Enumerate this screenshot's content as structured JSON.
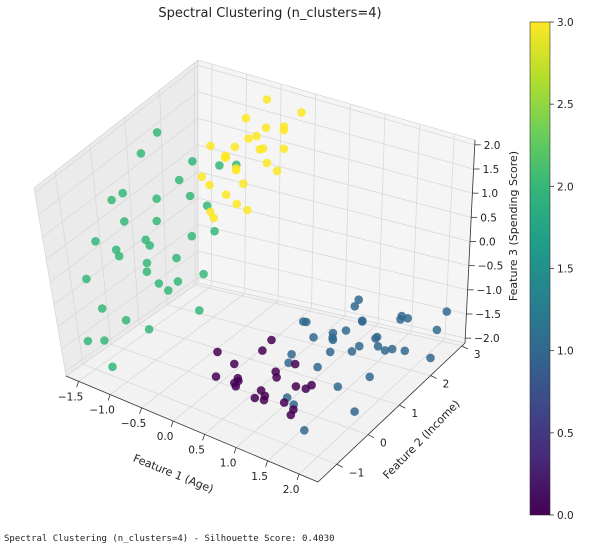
{
  "caption": "Spectral Clustering (n_clusters=4) - Silhouette Score: 0.4030",
  "colors": {
    "cluster_0": "#440154",
    "cluster_1": "#31688e",
    "cluster_2": "#35b779",
    "cluster_3": "#fde725",
    "pane": "#f2f2f2",
    "grid": "#dcdcdc"
  },
  "chart_data": {
    "type": "scatter",
    "projection": "3d",
    "title": "Spectral Clustering (n_clusters=4)",
    "xlabel": "Feature 1 (Age)",
    "ylabel": "Feature 2 (Income)",
    "zlabel": "Feature 3 (Spending Score)",
    "xticks": [
      "−1.5",
      "−1.0",
      "−0.5",
      "0.0",
      "0.5",
      "1.0",
      "1.5",
      "2.0"
    ],
    "yticks": [
      "−1",
      "0",
      "1",
      "2",
      "3"
    ],
    "zticks": [
      "−2.0",
      "−1.5",
      "−1.0",
      "−0.5",
      "0.0",
      "0.5",
      "1.0",
      "1.5",
      "2.0"
    ],
    "xlim": [
      -1.7,
      2.3
    ],
    "ylim": [
      -1.6,
      3.1
    ],
    "zlim": [
      -2.1,
      2.1
    ],
    "grid": true,
    "colorbar": {
      "colormap": "viridis",
      "range": [
        0,
        3
      ],
      "ticks": [
        "0.0",
        "0.5",
        "1.0",
        "1.5",
        "2.0",
        "2.5",
        "3.0"
      ]
    },
    "series": [
      {
        "name": "0",
        "points": [
          [
            0.6,
            -0.6,
            -1.5
          ],
          [
            0.9,
            -0.5,
            -1.6
          ],
          [
            1.1,
            -0.4,
            -1.2
          ],
          [
            1.3,
            -0.2,
            -1.5
          ],
          [
            0.7,
            -0.8,
            -1.3
          ],
          [
            0.5,
            -0.5,
            -1.7
          ],
          [
            1.0,
            -0.9,
            -1.5
          ],
          [
            1.4,
            -0.6,
            -1.8
          ],
          [
            0.8,
            -0.2,
            -1.9
          ],
          [
            1.2,
            -1.0,
            -1.4
          ],
          [
            0.4,
            -0.3,
            -1.4
          ],
          [
            1.5,
            -0.7,
            -1.6
          ],
          [
            0.3,
            -0.7,
            -1.5
          ],
          [
            0.9,
            0.0,
            -1.6
          ],
          [
            1.1,
            -0.2,
            -1.9
          ],
          [
            0.6,
            0.2,
            -1.3
          ],
          [
            0.2,
            -0.4,
            -1.2
          ],
          [
            1.6,
            -0.3,
            -1.3
          ],
          [
            0.8,
            -1.1,
            -1.2
          ],
          [
            1.3,
            0.1,
            -1.7
          ],
          [
            0.7,
            0.3,
            -1.1
          ],
          [
            1.0,
            0.4,
            -1.5
          ]
        ]
      },
      {
        "name": "1",
        "points": [
          [
            1.2,
            0.4,
            -0.6
          ],
          [
            1.5,
            0.6,
            -0.8
          ],
          [
            1.8,
            0.9,
            -0.6
          ],
          [
            1.4,
            1.2,
            -1.1
          ],
          [
            1.7,
            1.5,
            -1.3
          ],
          [
            2.0,
            1.8,
            -1.6
          ],
          [
            1.3,
            0.9,
            -1.4
          ],
          [
            1.6,
            1.3,
            -0.9
          ],
          [
            1.9,
            0.6,
            -0.9
          ],
          [
            2.1,
            1.2,
            -1.2
          ],
          [
            1.1,
            1.4,
            -1.5
          ],
          [
            1.5,
            2.0,
            -1.8
          ],
          [
            1.8,
            2.3,
            -1.3
          ],
          [
            2.1,
            2.6,
            -1.6
          ],
          [
            1.2,
            1.8,
            -1.9
          ],
          [
            1.7,
            0.3,
            -1.6
          ],
          [
            1.3,
            -0.3,
            -1.8
          ],
          [
            1.0,
            0.1,
            -2.0
          ],
          [
            1.6,
            -0.6,
            -2.0
          ],
          [
            2.0,
            0.2,
            -1.9
          ],
          [
            0.7,
            0.8,
            -1.8
          ],
          [
            1.4,
            1.6,
            -0.7
          ],
          [
            1.9,
            1.9,
            -1.0
          ],
          [
            1.1,
            2.1,
            -1.2
          ],
          [
            1.6,
            2.5,
            -1.5
          ],
          [
            2.1,
            2.9,
            -1.4
          ],
          [
            0.8,
            1.1,
            -1.1
          ],
          [
            1.2,
            0.6,
            -1.0
          ],
          [
            1.8,
            1.1,
            -1.8
          ],
          [
            2.2,
            2.2,
            -1.9
          ],
          [
            1.5,
            0.1,
            -1.2
          ],
          [
            1.0,
            1.6,
            -1.6
          ],
          [
            1.7,
            1.8,
            -1.7
          ],
          [
            0.9,
            0.5,
            -1.4
          ],
          [
            1.3,
            2.4,
            -1.9
          ]
        ]
      },
      {
        "name": "2",
        "points": [
          [
            -1.5,
            -0.5,
            0.4
          ],
          [
            -1.3,
            -0.3,
            0.2
          ],
          [
            -1.1,
            -0.6,
            0.3
          ],
          [
            -1.4,
            0.2,
            0.5
          ],
          [
            -1.2,
            0.4,
            0.1
          ],
          [
            -1.0,
            0.0,
            -0.1
          ],
          [
            -0.8,
            -0.4,
            0.0
          ],
          [
            -1.6,
            0.6,
            0.8
          ],
          [
            -0.9,
            0.7,
            -0.3
          ],
          [
            -0.7,
            0.3,
            -0.5
          ],
          [
            -1.3,
            1.0,
            0.6
          ],
          [
            -1.5,
            -0.9,
            -0.2
          ],
          [
            -1.1,
            1.3,
            0.9
          ],
          [
            -0.6,
            0.9,
            -0.6
          ],
          [
            -1.4,
            -0.1,
            1.1
          ],
          [
            -0.8,
            1.5,
            0.4
          ],
          [
            -1.2,
            -1.1,
            -0.6
          ],
          [
            -0.5,
            1.1,
            0.2
          ],
          [
            -1.6,
            1.2,
            1.3
          ],
          [
            -1.0,
            -0.8,
            -0.9
          ],
          [
            -0.7,
            -0.7,
            -1.0
          ],
          [
            -1.3,
            0.7,
            -0.2
          ],
          [
            -0.9,
            0.2,
            0.7
          ],
          [
            -1.5,
            1.5,
            1.6
          ],
          [
            -0.6,
            -0.2,
            -0.4
          ],
          [
            -1.1,
            0.5,
            -0.8
          ],
          [
            -0.8,
            1.9,
            1.0
          ],
          [
            -1.4,
            -1.3,
            -1.3
          ],
          [
            -0.5,
            0.5,
            -1.1
          ],
          [
            -1.2,
            1.8,
            0.3
          ],
          [
            -1.0,
            -1.4,
            -1.6
          ],
          [
            -0.7,
            2.2,
            0.9
          ],
          [
            -1.6,
            -0.4,
            -1.8
          ],
          [
            -0.9,
            1.2,
            -0.1
          ],
          [
            -1.3,
            2.1,
            0.8
          ]
        ]
      },
      {
        "name": "3",
        "points": [
          [
            -0.6,
            1.0,
            1.3
          ],
          [
            -0.4,
            1.3,
            1.6
          ],
          [
            -0.2,
            1.6,
            1.9
          ],
          [
            -0.5,
            1.8,
            1.1
          ],
          [
            -0.3,
            2.1,
            1.4
          ],
          [
            -0.1,
            2.4,
            1.7
          ],
          [
            -0.7,
            1.4,
            0.9
          ],
          [
            -0.5,
            2.0,
            0.7
          ],
          [
            -0.3,
            1.1,
            1.0
          ],
          [
            -0.2,
            2.6,
            1.2
          ],
          [
            -0.6,
            2.3,
            1.8
          ],
          [
            -0.4,
            0.9,
            0.6
          ],
          [
            -0.1,
            1.9,
            2.0
          ],
          [
            -0.5,
            1.5,
            1.5
          ],
          [
            -0.3,
            2.8,
            1.5
          ],
          [
            -0.7,
            1.9,
            1.2
          ],
          [
            -0.2,
            1.2,
            0.8
          ],
          [
            -0.4,
            2.5,
            0.9
          ],
          [
            -0.6,
            1.2,
            0.5
          ],
          [
            -0.3,
            1.7,
            0.4
          ],
          [
            -0.1,
            2.2,
            1.0
          ],
          [
            -0.5,
            2.7,
            2.0
          ],
          [
            -0.4,
            1.6,
            1.2
          ],
          [
            -0.2,
            2.0,
            1.5
          ],
          [
            -0.6,
            2.6,
            1.3
          ],
          [
            -0.3,
            1.4,
            1.8
          ],
          [
            -0.1,
            2.9,
            1.8
          ],
          [
            -0.5,
            1.1,
            1.9
          ]
        ]
      }
    ]
  }
}
